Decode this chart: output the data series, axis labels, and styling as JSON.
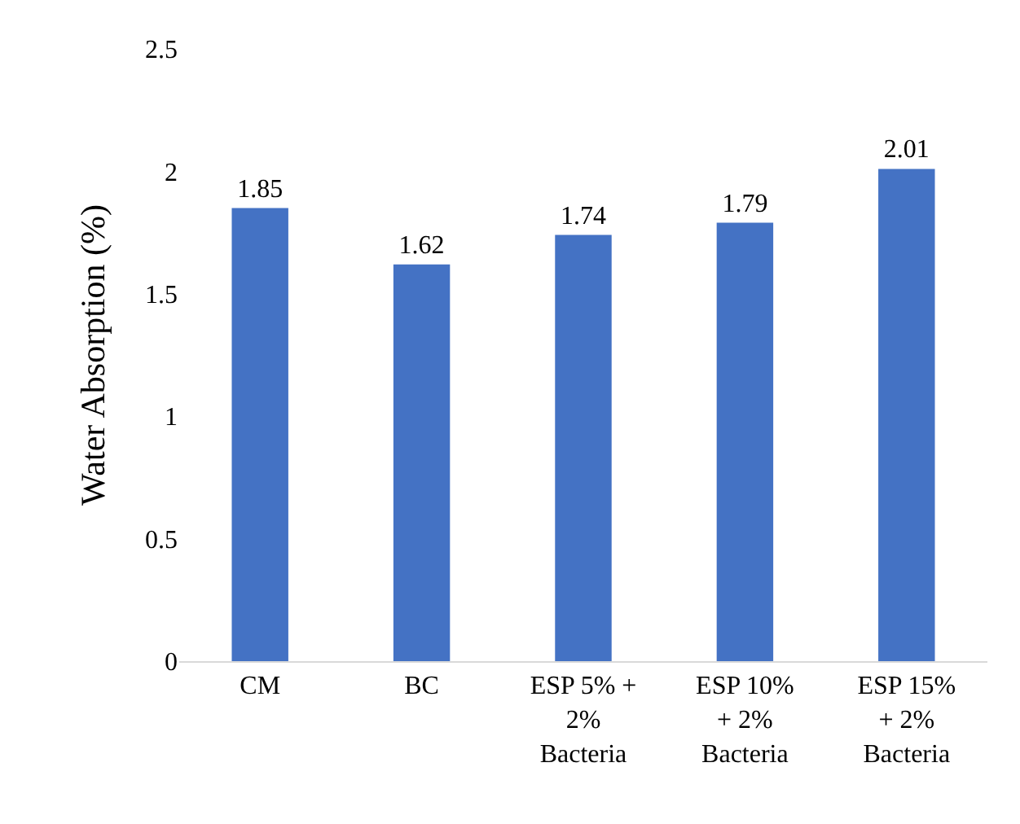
{
  "chart_data": {
    "type": "bar",
    "ylabel": "Water Absorption (%)",
    "categories": [
      "CM",
      "BC",
      "ESP 5% + 2% Bacteria",
      "ESP 10% + 2% Bacteria",
      "ESP 15% + 2% Bacteria"
    ],
    "values": [
      1.85,
      1.62,
      1.74,
      1.79,
      2.01
    ],
    "color": "#4472c4",
    "ylim": [
      0,
      2.5
    ],
    "yticks": [
      0,
      0.5,
      1,
      1.5,
      2,
      2.5
    ],
    "grid": false,
    "data_labels": true
  }
}
